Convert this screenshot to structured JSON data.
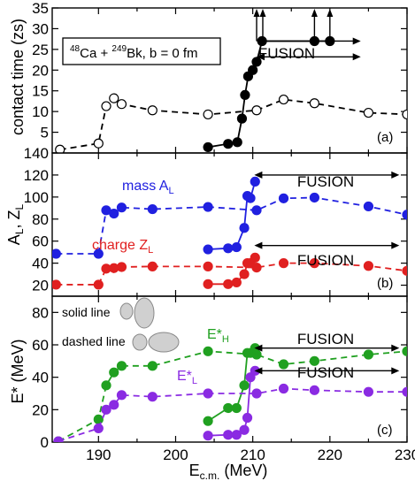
{
  "chart_data": [
    {
      "type": "line",
      "panel_label": "(a)",
      "ylabel": "contact time (zs)",
      "ylim": [
        0,
        35
      ],
      "yticks": [
        5,
        10,
        15,
        20,
        25,
        30,
        35
      ],
      "xlim": [
        184,
        230
      ],
      "box_text": {
        "mass_a": "48",
        "el_a": "Ca + ",
        "mass_b": "249",
        "el_b": "Bk, b = 0 fm"
      },
      "fusion_label": "FUSION",
      "fusion_arrow": [
        210.5,
        224
      ],
      "arrows_up_x": [
        210.5,
        211.3,
        218,
        220
      ],
      "series": [
        {
          "style": "solid",
          "marker": "filled",
          "color": "#000000",
          "x": [
            204.2,
            206.8,
            208.0,
            208.6,
            209.0,
            209.4,
            210.0,
            210.5,
            211.2,
            218.0,
            220.0
          ],
          "y": [
            1.4,
            2.2,
            2.6,
            8.3,
            14.0,
            18.5,
            20.0,
            22.0,
            27.0,
            27.0,
            27.0
          ]
        },
        {
          "style": "dashed",
          "marker": "open",
          "color": "#000000",
          "x": [
            185.0,
            190.0,
            191.0,
            192.0,
            193.0,
            197.0,
            204.2,
            210.5,
            214.0,
            218.0,
            225.0,
            230.0
          ],
          "y": [
            0.8,
            2.3,
            11.3,
            13.2,
            11.8,
            10.3,
            9.3,
            10.3,
            12.9,
            12.0,
            9.7,
            9.3
          ]
        }
      ]
    },
    {
      "type": "line",
      "panel_label": "(b)",
      "ylabel_html": {
        "a": "A",
        "a_sub": "L",
        "sep": ", Z",
        "z_sub": "L"
      },
      "ylim": [
        10,
        140
      ],
      "yticks": [
        20,
        40,
        60,
        80,
        100,
        120,
        140
      ],
      "xlim": [
        184,
        230
      ],
      "fusion_label": "FUSION",
      "fusion_arrows": [
        {
          "x": [
            210.2,
            229
          ],
          "y": 120
        },
        {
          "x": [
            210.2,
            229
          ],
          "y": 56
        }
      ],
      "series": [
        {
          "name": "mass",
          "name_sub": "L",
          "color": "#2020e0",
          "style": "dashed",
          "x": [
            184.5,
            190.0,
            191.0,
            192.0,
            193.0,
            197.0,
            204.2,
            210.5,
            214.0,
            218.0,
            225.0,
            230.0
          ],
          "y": [
            48.5,
            48.5,
            88.0,
            85.0,
            90.5,
            89.0,
            91.0,
            88.0,
            98.8,
            99.5,
            91.5,
            84.0
          ]
        },
        {
          "name": "",
          "color": "#2020e0",
          "style": "solid",
          "x": [
            204.2,
            206.8,
            207.9,
            208.9,
            209.3,
            209.7,
            210.3
          ],
          "y": [
            52.5,
            53.5,
            54.5,
            72.0,
            101.0,
            99.0,
            114.0
          ]
        },
        {
          "name": "charge",
          "name_sub": "L",
          "color": "#e02020",
          "style": "dashed",
          "x": [
            184.5,
            190.0,
            191.0,
            192.0,
            193.0,
            197.0,
            204.2,
            210.5,
            214.0,
            218.0,
            225.0,
            230.0
          ],
          "y": [
            20.5,
            20.5,
            35.0,
            35.5,
            36.5,
            37.0,
            37.0,
            36.0,
            40.0,
            40.0,
            37.5,
            33.0
          ]
        },
        {
          "name": "",
          "color": "#e02020",
          "style": "solid",
          "x": [
            204.2,
            206.8,
            207.9,
            208.9,
            209.3,
            209.7,
            210.3
          ],
          "y": [
            21.0,
            21.0,
            22.5,
            30.0,
            40.0,
            40.0,
            45.0
          ]
        }
      ]
    },
    {
      "type": "line",
      "panel_label": "(c)",
      "ylabel": "E* (MeV)",
      "ylim": [
        0,
        90
      ],
      "yticks": [
        0,
        20,
        40,
        60,
        80
      ],
      "xlim": [
        184,
        230
      ],
      "xticks": [
        190,
        200,
        210,
        220,
        230
      ],
      "xlabel_html": {
        "e": "E",
        "sub": "c.m.",
        "rest": " (MeV)"
      },
      "fusion_label": "FUSION",
      "fusion_arrows": [
        {
          "x": [
            210.2,
            229
          ],
          "y": 58
        },
        {
          "x": [
            210.2,
            229
          ],
          "y": 44
        }
      ],
      "legend_text": {
        "solid": "solid line",
        "dashed": "dashed line"
      },
      "series": [
        {
          "name": "E*",
          "name_sub": "H",
          "color": "#20a020",
          "style": "dashed",
          "x": [
            184.8,
            190.0,
            191.0,
            192.0,
            193.0,
            197.0,
            204.2,
            210.5,
            214.0,
            218.0,
            225.0,
            230.0
          ],
          "y": [
            0.5,
            14.0,
            35.0,
            43.0,
            47.0,
            47.0,
            56.0,
            54.0,
            48.0,
            50.0,
            54.0,
            56.0
          ]
        },
        {
          "name": "",
          "color": "#20a020",
          "style": "solid",
          "x": [
            204.2,
            206.8,
            207.9,
            208.9,
            209.3,
            209.7,
            210.3
          ],
          "y": [
            13.0,
            21.0,
            21.0,
            35.0,
            55.0,
            55.0,
            58.0
          ]
        },
        {
          "name": "E*",
          "name_sub": "L",
          "color": "#8a2be2",
          "style": "dashed",
          "x": [
            184.8,
            190.0,
            191.0,
            192.0,
            193.0,
            197.0,
            204.2,
            210.5,
            214.0,
            218.0,
            225.0,
            230.0
          ],
          "y": [
            0.5,
            8.5,
            20.0,
            23.0,
            29.0,
            28.0,
            30.0,
            30.0,
            33.0,
            32.0,
            31.0,
            31.0
          ]
        },
        {
          "name": "",
          "color": "#8a2be2",
          "style": "solid",
          "x": [
            204.2,
            206.8,
            207.9,
            208.9,
            209.3,
            209.7,
            210.3
          ],
          "y": [
            4.0,
            4.5,
            4.5,
            7.5,
            15.0,
            40.0,
            44.0
          ]
        }
      ]
    }
  ]
}
